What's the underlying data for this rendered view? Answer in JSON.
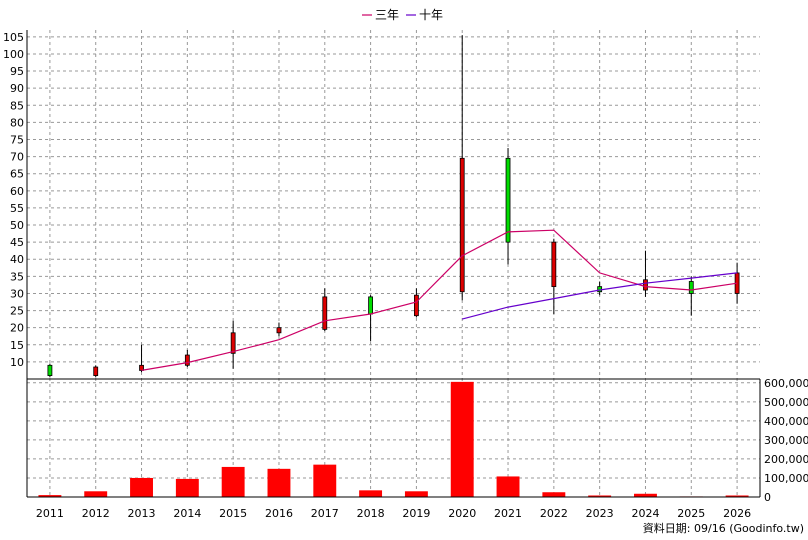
{
  "legend": {
    "items": [
      {
        "label": "三年",
        "color": "#cc0066"
      },
      {
        "label": "十年",
        "color": "#6600cc"
      }
    ]
  },
  "footer": {
    "text": "資料日期: 09/16  (Goodinfo.tw)"
  },
  "chart_data": {
    "type": "candlestick",
    "years": [
      "2011",
      "2012",
      "2013",
      "2014",
      "2015",
      "2016",
      "2017",
      "2018",
      "2019",
      "2020",
      "2021",
      "2022",
      "2023",
      "2024",
      "2025",
      "2026"
    ],
    "candles": [
      {
        "open": 6.0,
        "close": 9.0,
        "high": 9.5,
        "low": 5.5
      },
      {
        "open": 8.5,
        "close": 6.0,
        "high": 9.0,
        "low": 5.5
      },
      {
        "open": 9.0,
        "close": 7.5,
        "high": 15.0,
        "low": 7.0
      },
      {
        "open": 12.0,
        "close": 9.0,
        "high": 13.5,
        "low": 8.5
      },
      {
        "open": 18.5,
        "close": 12.5,
        "high": 22.0,
        "low": 8.0
      },
      {
        "open": 20.0,
        "close": 18.5,
        "high": 21.5,
        "low": 17.5
      },
      {
        "open": 29.0,
        "close": 19.5,
        "high": 31.5,
        "low": 19.0
      },
      {
        "open": 24.0,
        "close": 29.0,
        "high": 29.5,
        "low": 16.0
      },
      {
        "open": 29.5,
        "close": 23.5,
        "high": 31.5,
        "low": 23.0
      },
      {
        "open": 69.5,
        "close": 30.5,
        "high": 105.5,
        "low": 28.0
      },
      {
        "open": 45.0,
        "close": 69.5,
        "high": 72.5,
        "low": 38.5
      },
      {
        "open": 45.0,
        "close": 32.0,
        "high": 46.0,
        "low": 24.0
      },
      {
        "open": 30.5,
        "close": 32.0,
        "high": 33.5,
        "low": 29.5
      },
      {
        "open": 34.0,
        "close": 31.0,
        "high": 42.5,
        "low": 29.0
      },
      {
        "open": 30.0,
        "close": 33.5,
        "high": 35.0,
        "low": 23.5
      },
      {
        "open": 36.0,
        "close": 30.0,
        "high": 39.0,
        "low": 27.0
      }
    ],
    "ma3": [
      null,
      null,
      7.5,
      9.8,
      13.0,
      16.5,
      22.0,
      24.0,
      27.5,
      41.0,
      48.0,
      48.5,
      36.0,
      32.0,
      31.0,
      33.0
    ],
    "ma10": [
      null,
      null,
      null,
      null,
      null,
      null,
      null,
      null,
      null,
      22.5,
      26.0,
      28.5,
      31.0,
      33.0,
      34.5,
      36.0
    ],
    "volume": [
      10000,
      30000,
      100000,
      95000,
      158000,
      148000,
      170000,
      35000,
      30000,
      605000,
      108000,
      25000,
      8000,
      17000,
      3000,
      8000
    ],
    "price_axis": {
      "min": 5,
      "max": 107,
      "ticks": [
        10,
        15,
        20,
        25,
        30,
        35,
        40,
        45,
        50,
        55,
        60,
        65,
        70,
        75,
        80,
        85,
        90,
        95,
        100,
        105
      ]
    },
    "volume_axis": {
      "min": 0,
      "max": 620000,
      "ticks": [
        0,
        100000,
        200000,
        300000,
        400000,
        500000,
        600000
      ],
      "tick_labels": [
        "0",
        "100,000",
        "200,000",
        "300,000",
        "400,000",
        "500,000",
        "600,000"
      ]
    },
    "colors": {
      "up": "#00dd00",
      "down": "#dd0000",
      "volume": "#ff0000",
      "grid": "#999999",
      "wick": "#000000"
    }
  }
}
